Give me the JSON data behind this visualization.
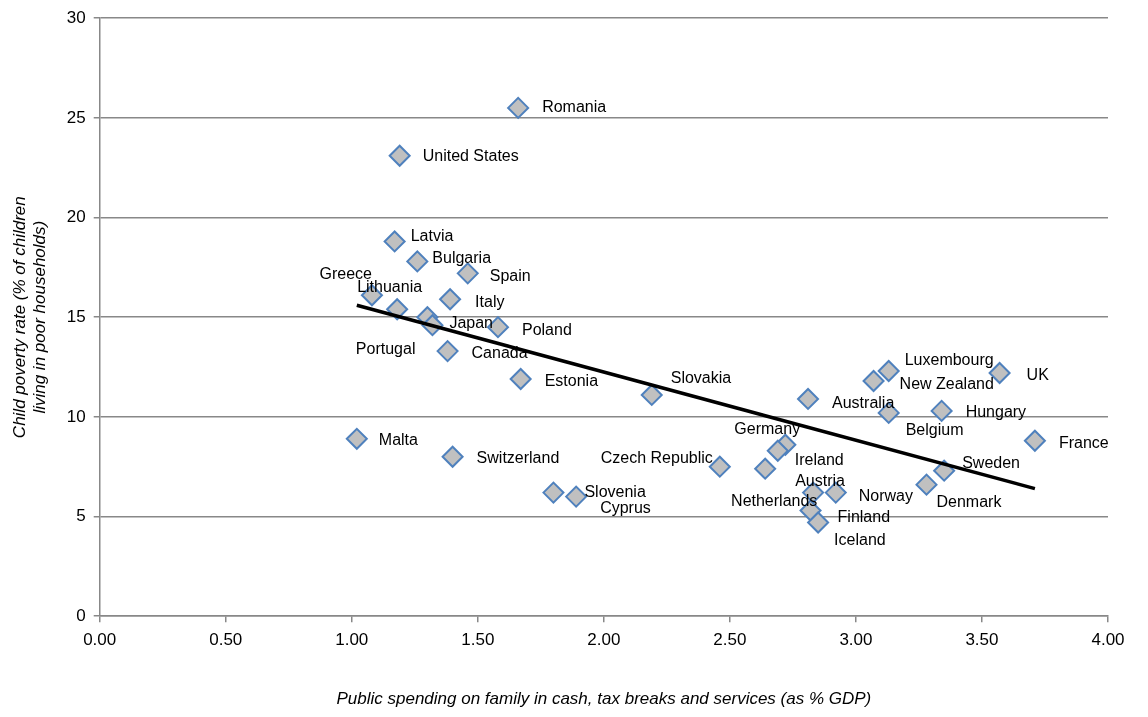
{
  "chart_data": {
    "type": "scatter",
    "xlabel": "Public spending on family in cash, tax breaks and services (as % GDP)",
    "ylabel": "Child poverty rate (% of children living in poor households)",
    "xlim": [
      0,
      4
    ],
    "xticks": [
      {
        "value": 0,
        "label": "0.00"
      },
      {
        "value": 0.5,
        "label": "0.50"
      },
      {
        "value": 1,
        "label": "1.00"
      },
      {
        "value": 1.5,
        "label": "1.50"
      },
      {
        "value": 2,
        "label": "2.00"
      },
      {
        "value": 2.5,
        "label": "2.50"
      },
      {
        "value": 3,
        "label": "3.00"
      },
      {
        "value": 3.5,
        "label": "3.50"
      },
      {
        "value": 4,
        "label": "4.00"
      }
    ],
    "ylim": [
      0,
      30
    ],
    "yticks": [
      0,
      5,
      10,
      15,
      20,
      25,
      30
    ],
    "grid": "y",
    "legend": false,
    "marker": "diamond",
    "series": [
      {
        "color": "#c0c0c0",
        "x": [
          1.66,
          1.19,
          1.17,
          1.26,
          1.46,
          1.08,
          1.18,
          1.39,
          1.3,
          1.32,
          1.58,
          1.38,
          1.67,
          2.19,
          1.02,
          1.4,
          1.8,
          1.89,
          2.46,
          2.64,
          2.83,
          2.92,
          2.82,
          2.85,
          2.72,
          2.69,
          2.81,
          3.13,
          3.07,
          3.13,
          3.57,
          3.34,
          3.71,
          3.35,
          3.28
        ],
        "values": [
          25.5,
          23.1,
          18.8,
          17.8,
          17.2,
          16.1,
          15.4,
          15.9,
          15.0,
          14.6,
          14.5,
          13.3,
          11.9,
          11.1,
          8.9,
          8.0,
          6.2,
          6.0,
          7.5,
          7.4,
          6.2,
          6.2,
          5.3,
          4.7,
          8.6,
          8.3,
          10.9,
          10.2,
          11.8,
          12.3,
          12.2,
          10.3,
          8.8,
          7.3,
          6.6
        ]
      },
      {
        "type": "line",
        "color": "#000000",
        "x": [
          1.02,
          3.71
        ],
        "values": [
          15.6,
          6.4
        ],
        "marker": "none"
      }
    ],
    "annotations": [
      {
        "text": "Romania",
        "x": 1.66,
        "y": 25.5
      },
      {
        "text": "United States",
        "x": 1.19,
        "y": 23.1
      },
      {
        "text": "Latvia",
        "x": 1.17,
        "y": 18.8
      },
      {
        "text": "Bulgaria",
        "x": 1.26,
        "y": 17.8
      },
      {
        "text": "Spain",
        "x": 1.46,
        "y": 17.2
      },
      {
        "text": "Greece",
        "x": 1.08,
        "y": 16.1
      },
      {
        "text": "Lithuania",
        "x": 1.18,
        "y": 15.4
      },
      {
        "text": "Italy",
        "x": 1.39,
        "y": 15.9
      },
      {
        "text": "Japan",
        "x": 1.3,
        "y": 15.0
      },
      {
        "text": "Portugal",
        "x": 1.32,
        "y": 14.6
      },
      {
        "text": "Poland",
        "x": 1.58,
        "y": 14.5
      },
      {
        "text": "Canada",
        "x": 1.38,
        "y": 13.3
      },
      {
        "text": "Estonia",
        "x": 1.67,
        "y": 11.9
      },
      {
        "text": "Slovakia",
        "x": 2.19,
        "y": 11.1
      },
      {
        "text": "Malta",
        "x": 1.02,
        "y": 8.9
      },
      {
        "text": "Switzerland",
        "x": 1.4,
        "y": 8.0
      },
      {
        "text": "Slovenia",
        "x": 1.8,
        "y": 6.2
      },
      {
        "text": "Cyprus",
        "x": 1.89,
        "y": 6.0
      },
      {
        "text": "Czech Republic",
        "x": 2.46,
        "y": 7.5
      },
      {
        "text": "Austria",
        "x": 2.64,
        "y": 7.4
      },
      {
        "text": "Netherlands",
        "x": 2.83,
        "y": 6.2
      },
      {
        "text": "Norway",
        "x": 2.92,
        "y": 6.2
      },
      {
        "text": "Finland",
        "x": 2.82,
        "y": 5.3
      },
      {
        "text": "Iceland",
        "x": 2.85,
        "y": 4.7
      },
      {
        "text": "Germany",
        "x": 2.72,
        "y": 8.6
      },
      {
        "text": "Ireland",
        "x": 2.69,
        "y": 8.3
      },
      {
        "text": "Australia",
        "x": 2.81,
        "y": 10.9
      },
      {
        "text": "Belgium",
        "x": 3.13,
        "y": 10.2
      },
      {
        "text": "New Zealand",
        "x": 3.07,
        "y": 11.8
      },
      {
        "text": "Luxembourg",
        "x": 3.13,
        "y": 12.3
      },
      {
        "text": "UK",
        "x": 3.57,
        "y": 12.2
      },
      {
        "text": "Hungary",
        "x": 3.34,
        "y": 10.3
      },
      {
        "text": "France",
        "x": 3.71,
        "y": 8.8
      },
      {
        "text": "Sweden",
        "x": 3.35,
        "y": 7.3
      },
      {
        "text": "Denmark",
        "x": 3.28,
        "y": 6.6
      }
    ]
  }
}
